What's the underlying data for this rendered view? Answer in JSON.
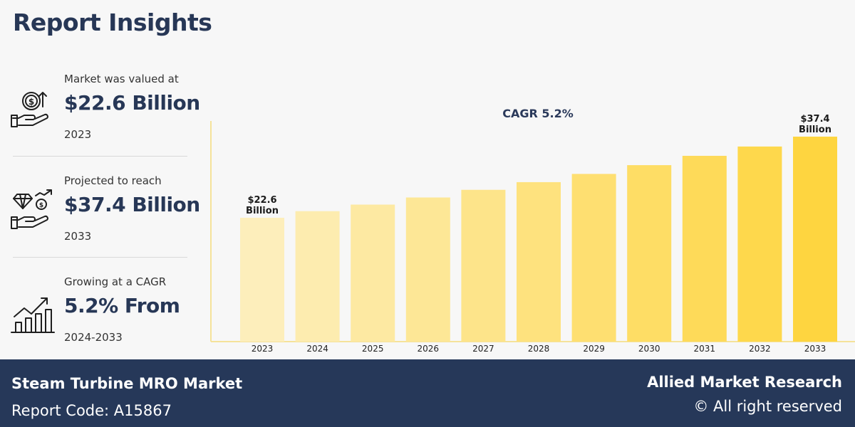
{
  "page": {
    "title": "Report Insights"
  },
  "stats": [
    {
      "label": "Market was valued at",
      "value": "$22.6 Billion",
      "sub": "2023",
      "icon": "money-hand-icon"
    },
    {
      "label": "Projected to reach",
      "value": "$37.4 Billion",
      "sub": "2033",
      "icon": "diamond-growth-hand-icon"
    },
    {
      "label": "Growing at a CAGR",
      "value": "5.2% From",
      "sub": "2024-2033",
      "icon": "bar-growth-icon"
    }
  ],
  "chart_data": {
    "type": "bar",
    "title": "CAGR 5.2%",
    "categories": [
      "2023",
      "2024",
      "2025",
      "2026",
      "2027",
      "2028",
      "2029",
      "2030",
      "2031",
      "2032",
      "2033"
    ],
    "values": [
      22.6,
      23.8,
      25.0,
      26.3,
      27.7,
      29.1,
      30.6,
      32.2,
      33.9,
      35.6,
      37.4
    ],
    "data_labels": [
      {
        "index": 0,
        "lines": [
          "$22.6",
          "Billion"
        ]
      },
      {
        "index": 10,
        "lines": [
          "$37.4",
          "Billion"
        ]
      }
    ],
    "ylim": [
      0,
      40
    ],
    "grid": false,
    "colors": {
      "start": "#fdeebb",
      "end": "#fed540",
      "axis": "#f5e29a"
    }
  },
  "footer": {
    "market_name": "Steam Turbine MRO Market",
    "report_code": "Report Code:  A15867",
    "brand": "Allied Market Research",
    "rights": "© All right reserved"
  }
}
